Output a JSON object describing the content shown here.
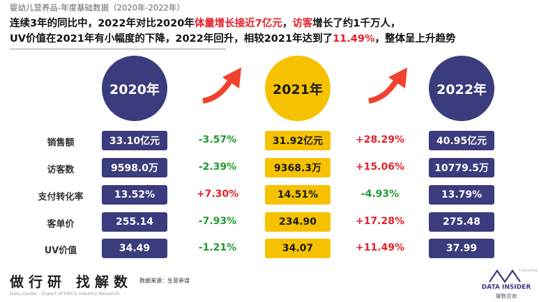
{
  "subtitle": "婴幼儿营养品-年度基础数据（2020年-2022年）",
  "headline": {
    "line1": [
      {
        "text": "连续3年的同比中，2022年对比2020年",
        "red": false
      },
      {
        "text": "体量增长接近7亿元",
        "red": true
      },
      {
        "text": "，",
        "red": false
      },
      {
        "text": "访客",
        "red": true
      },
      {
        "text": "增长了约1千万人，",
        "red": false
      }
    ],
    "line2": [
      {
        "text": "UV价值在2021年有小幅度的下降，2022年回升，相较2021年达到了",
        "red": false
      },
      {
        "text": "11.49%",
        "red": true
      },
      {
        "text": "，整体呈上升趋势",
        "red": false
      }
    ]
  },
  "years": [
    {
      "label": "2020年",
      "style": "purple"
    },
    {
      "label": "2021年",
      "style": "yellow"
    },
    {
      "label": "2022年",
      "style": "purple"
    }
  ],
  "rows": [
    {
      "label": "销售额",
      "v2020": "33.10亿元",
      "c1": "-3.57%",
      "c1_dir": "down",
      "v2021": "31.92亿元",
      "c2": "+28.29%",
      "c2_dir": "up",
      "v2022": "40.95亿元"
    },
    {
      "label": "访客数",
      "v2020": "9598.0万",
      "c1": "-2.39%",
      "c1_dir": "down",
      "v2021": "9368.3万",
      "c2": "+15.06%",
      "c2_dir": "up",
      "v2022": "10779.5万"
    },
    {
      "label": "支付转化率",
      "v2020": "13.52%",
      "c1": "+7.30%",
      "c1_dir": "up",
      "v2021": "14.51%",
      "c2": "-4.93%",
      "c2_dir": "down",
      "v2022": "13.79%"
    },
    {
      "label": "客单价",
      "v2020": "255.14",
      "c1": "-7.93%",
      "c1_dir": "down",
      "v2021": "234.90",
      "c2": "+17.28%",
      "c2_dir": "up",
      "v2022": "275.48"
    },
    {
      "label": "UV价值",
      "v2020": "34.49",
      "c1": "-1.21%",
      "c1_dir": "down",
      "v2021": "34.07",
      "c2": "+11.49%",
      "c2_dir": "up",
      "v2022": "37.99"
    }
  ],
  "colors": {
    "purple": "#3a3c7d",
    "yellow": "#f6c200",
    "up": "#e5202a",
    "down": "#1f9a2d",
    "arrow": "#f0422e"
  },
  "icons": {
    "arrow": "up-right-arrow-icon",
    "logo": "data-insider-logo-icon"
  },
  "footer": {
    "brand": "做行研 找解数",
    "brand_sub": "Data Insider - Expert of FMCG Industry Research",
    "source": "数据来源：生意参谋",
    "logo_small": "Consulting",
    "logo_name": "DATA INSIDER",
    "logo_cn": "解数咨询"
  }
}
